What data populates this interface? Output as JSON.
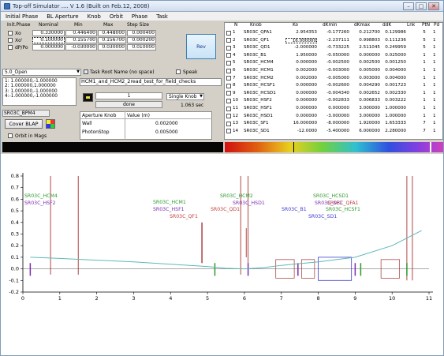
{
  "window": {
    "title": "Top-off Simulator .... V 1.6     (Built on Feb.12, 2008)",
    "min": "–",
    "max": "□",
    "close": "✕"
  },
  "menu": [
    "Initial Phase",
    "BL Aperture",
    "Knob",
    "Orbit",
    "Phase",
    "Task"
  ],
  "phase_table": {
    "headers": [
      "Init.Phase",
      "Nominal",
      "Min",
      "Max",
      "Step Size"
    ],
    "rows": [
      {
        "label": "Xo",
        "nominal": "0.330000",
        "min": "0.446400",
        "max": "0.448000",
        "step": "0.000400"
      },
      {
        "label": "Xo'",
        "nominal": "0.100000",
        "min": "0.155700",
        "max": "0.156700",
        "step": "0.000200"
      },
      {
        "label": "dP/Po",
        "nominal": "0.000000",
        "min": "-0.030000",
        "max": "0.030000",
        "step": "0.010000"
      }
    ]
  },
  "rev_button": "Rev",
  "controls": {
    "open_select": "5.0_Open",
    "task_root_checkbox": "Task Root Name (no space)",
    "speak_checkbox": "Speak",
    "task_root_value": "HCM1_and_HCM2_2read_test_for_field_checks",
    "list_items": [
      "1: 1.000000,-1.000000",
      "2: 1.000000,1.000000",
      "3: 1.000000,-1.000000",
      "4:-1.000000,-1.000000"
    ],
    "counter_value": "1",
    "status": "done",
    "single_knob": "Single Knob",
    "time": "1.063 sec",
    "bpm": "SR03C_BPM4",
    "cover_blap": "Cover BLAP",
    "orbit_in_mags": "Orbit in Mags"
  },
  "aperture": {
    "headers": [
      "Aperture Knob",
      "Value (m)"
    ],
    "rows": [
      {
        "knob": "Wall",
        "value": "0.002000"
      },
      {
        "knob": "PhotonStop",
        "value": "0.005000"
      }
    ]
  },
  "knob_table": {
    "headers": [
      "N",
      "Knob",
      "Ko",
      "dKmin",
      "dKmax",
      "ddK",
      "Lnk",
      "PtN",
      "Pd"
    ],
    "rows": [
      {
        "n": "1",
        "knob": "SR03C_QFA1",
        "ko": "2.954353",
        "dkmin": "-0.177260",
        "dkmax": "0.212700",
        "ddk": "0.129986",
        "lnk": "",
        "ptn": "5",
        "pd": "1"
      },
      {
        "n": "2",
        "knob": "SR03C_QF1",
        "ko": "16.000000",
        "dkmin": "-2.237111",
        "dkmax": "0.998803",
        "ddk": "0.111236",
        "lnk": "",
        "ptn": "5",
        "pd": "1"
      },
      {
        "n": "3",
        "knob": "SR03C_QD1",
        "ko": "-2.000000",
        "dkmin": "-0.733225",
        "dkmax": "2.511045",
        "ddk": "0.249959",
        "lnk": "",
        "ptn": "5",
        "pd": "1"
      },
      {
        "n": "4",
        "knob": "SR03C_B1",
        "ko": "1.950000",
        "dkmin": "-0.050000",
        "dkmax": "0.000000",
        "ddk": "0.025000",
        "lnk": "",
        "ptn": "1",
        "pd": "1"
      },
      {
        "n": "5",
        "knob": "SR03C_HCM4",
        "ko": "0.000000",
        "dkmin": "-0.002500",
        "dkmax": "0.002500",
        "ddk": "0.001250",
        "lnk": "",
        "ptn": "1",
        "pd": "1"
      },
      {
        "n": "6",
        "knob": "SR03C_HCM1",
        "ko": "0.002000",
        "dkmin": "-0.003000",
        "dkmax": "0.005000",
        "ddk": "0.004000",
        "lnk": "",
        "ptn": "1",
        "pd": "1"
      },
      {
        "n": "7",
        "knob": "SR03C_HCM2",
        "ko": "0.002000",
        "dkmin": "-0.005000",
        "dkmax": "0.003000",
        "ddk": "0.004000",
        "lnk": "",
        "ptn": "1",
        "pd": "1"
      },
      {
        "n": "8",
        "knob": "SR03C_HCSF1",
        "ko": "0.000000",
        "dkmin": "-0.002600",
        "dkmax": "0.004290",
        "ddk": "0.001723",
        "lnk": "",
        "ptn": "1",
        "pd": "1"
      },
      {
        "n": "9",
        "knob": "SR03C_HCSD1",
        "ko": "0.000000",
        "dkmin": "-0.004340",
        "dkmax": "0.002652",
        "ddk": "0.002330",
        "lnk": "",
        "ptn": "1",
        "pd": "1"
      },
      {
        "n": "10",
        "knob": "SR03C_HSF2",
        "ko": "0.000000",
        "dkmin": "-0.002833",
        "dkmax": "0.006833",
        "ddk": "0.003222",
        "lnk": "",
        "ptn": "1",
        "pd": "1"
      },
      {
        "n": "11",
        "knob": "SR03C_HSF1",
        "ko": "0.000000",
        "dkmin": "0.000000",
        "dkmax": "3.000000",
        "ddk": "1.000000",
        "lnk": "",
        "ptn": "1",
        "pd": "1"
      },
      {
        "n": "12",
        "knob": "SR03C_HSD1",
        "ko": "0.000000",
        "dkmin": "-3.000000",
        "dkmax": "3.000000",
        "ddk": "1.000000",
        "lnk": "",
        "ptn": "1",
        "pd": "1"
      },
      {
        "n": "13",
        "knob": "SR03C_SF1",
        "ko": "16.000000",
        "dkmin": "-8.000000",
        "dkmax": "1.920000",
        "ddk": "1.653333",
        "lnk": "",
        "ptn": "7",
        "pd": "1"
      },
      {
        "n": "14",
        "knob": "SR03C_SD1",
        "ko": "-12.0000",
        "dkmin": "-5.400000",
        "dkmax": "6.000000",
        "ddk": "2.280000",
        "lnk": "",
        "ptn": "7",
        "pd": "1"
      }
    ]
  },
  "chart_data": {
    "type": "line",
    "xlim": [
      0,
      11
    ],
    "ylim": [
      -0.2,
      0.8
    ],
    "xticks": [
      "0",
      "1",
      "2",
      "3",
      "4",
      "5",
      "6",
      "7",
      "8",
      "9",
      "10",
      "11"
    ],
    "yticks": [
      "0.8",
      "0.7",
      "0.6",
      "0.5",
      "0.4",
      "0.3",
      "0.2",
      "0.1",
      "0.0",
      "-0.1",
      "-0.2"
    ],
    "series": [
      {
        "color": "#5fb8b8",
        "x": [
          0.2,
          1,
          2,
          3,
          4,
          5,
          5.5,
          6,
          6.5,
          7,
          8,
          9,
          10,
          10.8
        ],
        "y": [
          0.1,
          0.09,
          0.075,
          0.06,
          0.04,
          0.02,
          0.005,
          0.0,
          0.01,
          0.03,
          0.06,
          0.1,
          0.2,
          0.33
        ]
      }
    ],
    "labels": [
      {
        "text": "SR03C_HCM4",
        "color": "#2c9a2c"
      },
      {
        "text": "SR03C_HSF2",
        "color": "#7a2fb0"
      },
      {
        "text": "SR03C_HCM2",
        "color": "#2c9a2c"
      },
      {
        "text": "SR03C_HSD1",
        "color": "#7a2fb0"
      },
      {
        "text": "SR03C_HCSD1",
        "color": "#2c9a2c"
      },
      {
        "text": "SR03C_QFA1",
        "color": "#c04040"
      },
      {
        "text": "SR03C_HCM1",
        "color": "#2c9a2c"
      },
      {
        "text": "SR03C_QD1",
        "color": "#c04040"
      },
      {
        "text": "SR03C_SF1",
        "color": "#7a2fb0"
      },
      {
        "text": "SR03C_HSF1",
        "color": "#7a2fb0"
      },
      {
        "text": "SR03C_B1",
        "color": "#3b3bd0"
      },
      {
        "text": "SR03C_HCSF1",
        "color": "#2c9a2c"
      },
      {
        "text": "SR03C_SD1",
        "color": "#3b3bd0"
      },
      {
        "text": "SR03C_QF1",
        "color": "#c04040"
      }
    ]
  }
}
